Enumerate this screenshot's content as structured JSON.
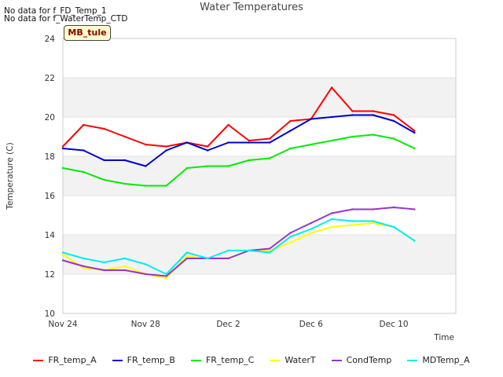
{
  "notices": [
    "No data for f_FD_Temp_1",
    "No data for f_WaterTemp_CTD"
  ],
  "badge": "MB_tule",
  "chart_data": {
    "type": "line",
    "title": "Water Temperatures",
    "xlabel": "Time",
    "ylabel": "Temperature (C)",
    "xlim": [
      "2023-11-24",
      "2023-12-13"
    ],
    "ylim": [
      10,
      24
    ],
    "x_ticks": [
      "Nov 24",
      "Nov 28",
      "Dec 2",
      "Dec 6",
      "Dec 10"
    ],
    "y_ticks": [
      10,
      12,
      14,
      16,
      18,
      20,
      22,
      24
    ],
    "grid": true,
    "legend_position": "bottom",
    "x": [
      "2023-11-24",
      "2023-11-25",
      "2023-11-26",
      "2023-11-27",
      "2023-11-28",
      "2023-11-29",
      "2023-11-30",
      "2023-12-01",
      "2023-12-02",
      "2023-12-03",
      "2023-12-04",
      "2023-12-05",
      "2023-12-06",
      "2023-12-07",
      "2023-12-08",
      "2023-12-09",
      "2023-12-10",
      "2023-12-11"
    ],
    "series": [
      {
        "name": "FR_temp_A",
        "color": "#ff0000",
        "values": [
          18.5,
          19.6,
          19.4,
          19.0,
          18.6,
          18.5,
          18.7,
          18.5,
          19.6,
          18.8,
          18.9,
          19.8,
          19.9,
          21.5,
          20.3,
          20.3,
          20.1,
          19.3
        ]
      },
      {
        "name": "FR_temp_B",
        "color": "#0000cc",
        "values": [
          18.4,
          18.3,
          17.8,
          17.8,
          17.5,
          18.3,
          18.7,
          18.3,
          18.7,
          18.7,
          18.7,
          19.3,
          19.9,
          20.0,
          20.1,
          20.1,
          19.8,
          19.2
        ]
      },
      {
        "name": "FR_temp_C",
        "color": "#00ee00",
        "values": [
          17.4,
          17.2,
          16.8,
          16.6,
          16.5,
          16.5,
          17.4,
          17.5,
          17.5,
          17.8,
          17.9,
          18.4,
          18.6,
          18.8,
          19.0,
          19.1,
          18.9,
          18.4
        ]
      },
      {
        "name": "WaterT",
        "color": "#ffff00",
        "values": [
          13.0,
          12.3,
          12.2,
          12.4,
          12.0,
          11.8,
          12.9,
          12.8,
          12.8,
          13.2,
          13.2,
          13.6,
          14.1,
          14.4,
          14.5,
          14.6,
          14.4,
          13.7
        ]
      },
      {
        "name": "CondTemp",
        "color": "#9933cc",
        "values": [
          12.7,
          12.4,
          12.2,
          12.2,
          12.0,
          11.9,
          12.8,
          12.8,
          12.8,
          13.2,
          13.3,
          14.1,
          14.6,
          15.1,
          15.3,
          15.3,
          15.4,
          15.3
        ]
      },
      {
        "name": "MDTemp_A",
        "color": "#00eeee",
        "values": [
          13.1,
          12.8,
          12.6,
          12.8,
          12.5,
          12.0,
          13.1,
          12.8,
          13.2,
          13.2,
          13.1,
          13.9,
          14.3,
          14.8,
          14.7,
          14.7,
          14.4,
          13.7
        ]
      }
    ]
  }
}
